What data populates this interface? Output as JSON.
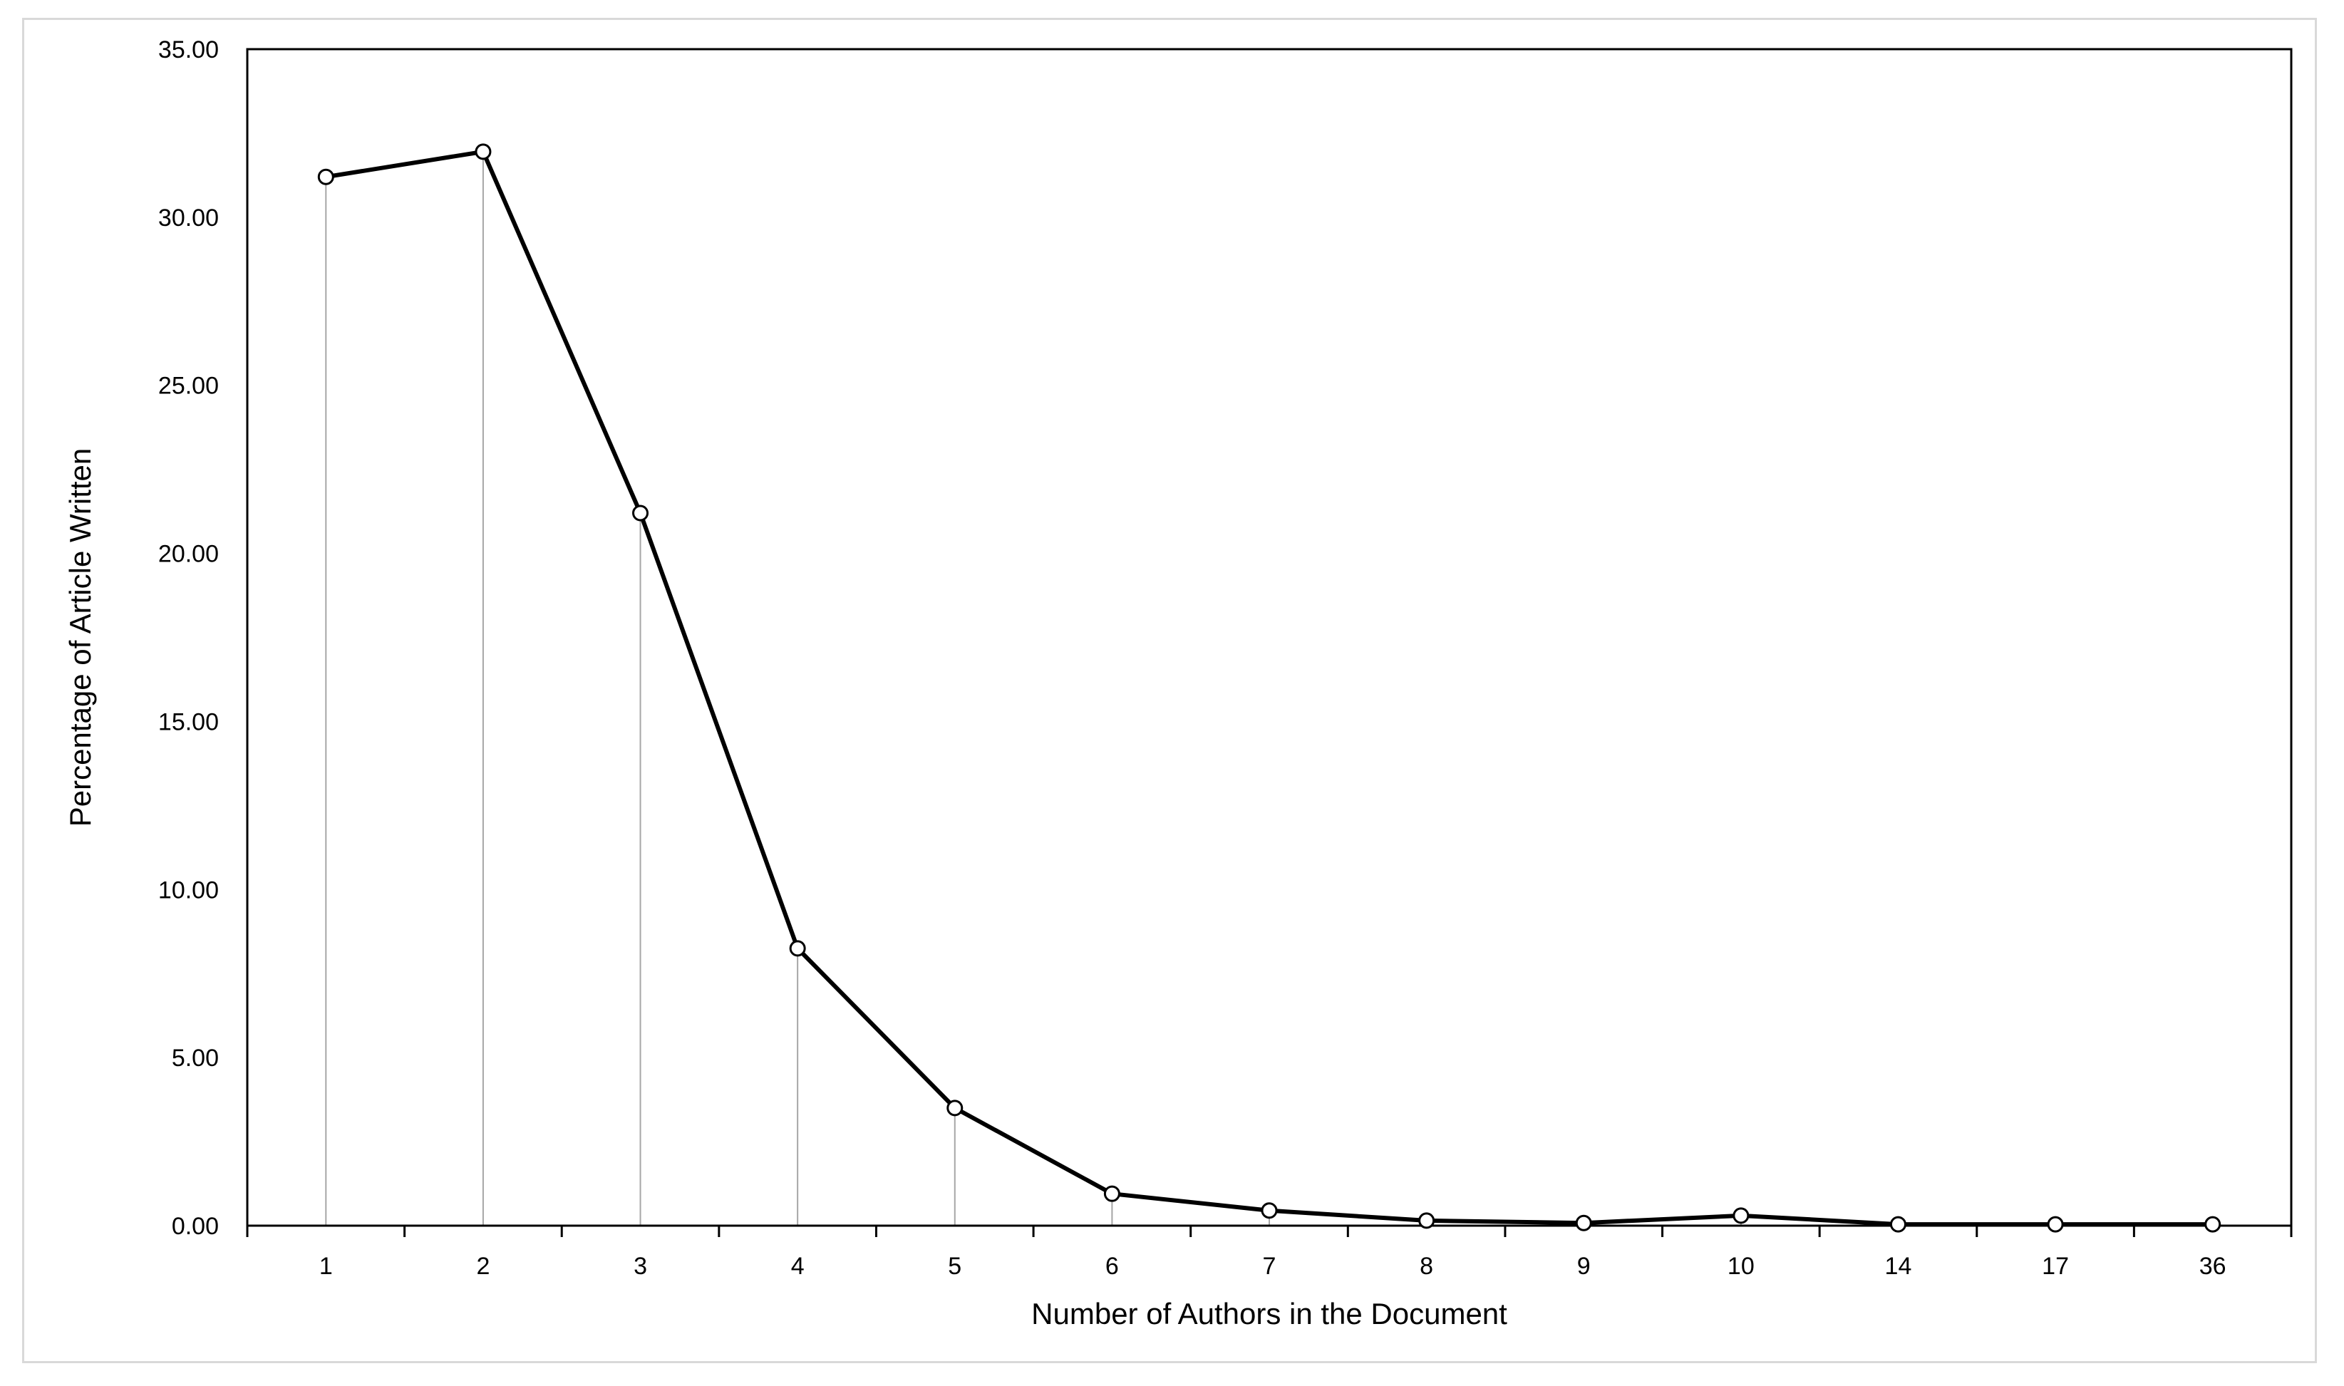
{
  "chart_data": {
    "type": "line",
    "title": "",
    "xlabel": "Number of Authors in the Document",
    "ylabel": "Percentage of Article Written",
    "categories": [
      "1",
      "2",
      "3",
      "4",
      "5",
      "6",
      "7",
      "8",
      "9",
      "10",
      "14",
      "17",
      "36"
    ],
    "values": [
      31.2,
      31.95,
      21.2,
      8.25,
      3.5,
      0.95,
      0.45,
      0.15,
      0.08,
      0.3,
      0.04,
      0.04,
      0.04
    ],
    "ylim": [
      0,
      35
    ],
    "yticks": [
      "0.00",
      "5.00",
      "10.00",
      "15.00",
      "20.00",
      "25.00",
      "30.00",
      "35.00"
    ],
    "grid": false,
    "drop_lines": true,
    "markers": "open-circle",
    "legend": "none",
    "colors": {
      "line": "#000000",
      "drop_line": "#a6a6a6",
      "plot_border": "#000000",
      "frame_border": "#d9d9d9"
    }
  }
}
